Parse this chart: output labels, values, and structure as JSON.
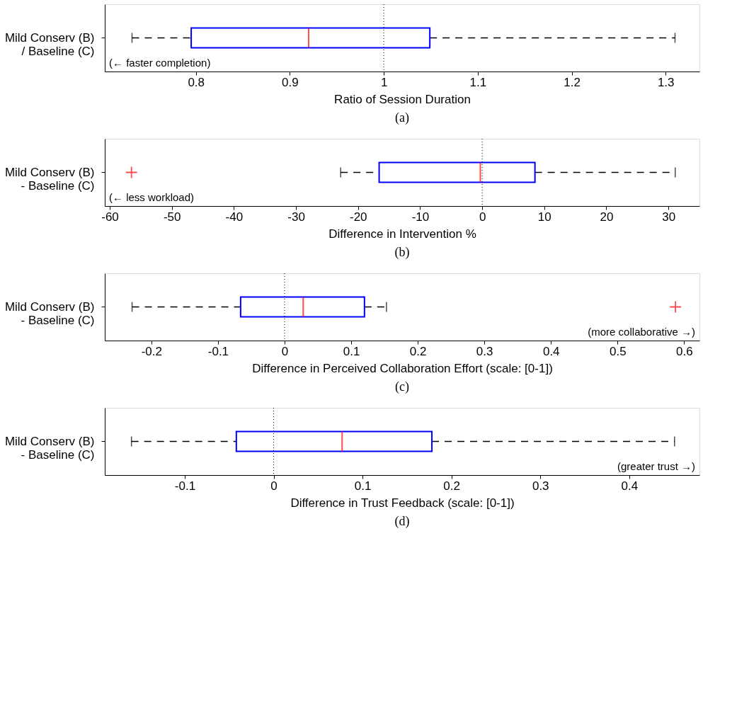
{
  "chart_data": [
    {
      "type": "box",
      "title": "(a)",
      "orientation": "horizontal",
      "categories": [
        "Mild Conserv (B)\n/ Baseline (C)"
      ],
      "xlabel": "Ratio of Session Duration",
      "xlim": [
        0.703,
        1.336
      ],
      "xticks": [
        0.8,
        0.9,
        1,
        1.1,
        1.2,
        1.3
      ],
      "grid": false,
      "boxes": [
        {
          "low": 0.732,
          "q1": 0.795,
          "median": 0.92,
          "q3": 1.049,
          "high": 1.31
        }
      ],
      "ref_lines": [
        {
          "axis": "x",
          "value": 1,
          "line_style": "dotted"
        }
      ],
      "annotations": [
        "(← faster completion)"
      ]
    },
    {
      "type": "box",
      "title": "(b)",
      "orientation": "horizontal",
      "categories": [
        "Mild Conserv (B)\n- Baseline (C)"
      ],
      "xlabel": "Difference in Intervention %",
      "xlim": [
        -60.8,
        35
      ],
      "xticks": [
        -60,
        -50,
        -40,
        -30,
        -20,
        -10,
        0,
        10,
        20,
        30
      ],
      "grid": false,
      "boxes": [
        {
          "low": -22.8,
          "q1": -16.6,
          "median": -0.3,
          "q3": 8.5,
          "high": 31.1,
          "outliers": [
            -56.5
          ]
        }
      ],
      "ref_lines": [
        {
          "axis": "x",
          "value": 0,
          "line_style": "dotted"
        }
      ],
      "annotations": [
        "(← less workload)"
      ]
    },
    {
      "type": "box",
      "title": "(c)",
      "orientation": "horizontal",
      "categories": [
        "Mild Conserv (B)\n- Baseline (C)"
      ],
      "xlabel": "Difference in Perceived Collaboration Effort     (scale: [0-1])",
      "xlim": [
        -0.27,
        0.623
      ],
      "xticks": [
        -0.2,
        -0.1,
        0,
        0.1,
        0.2,
        0.3,
        0.4,
        0.5,
        0.6
      ],
      "grid": false,
      "boxes": [
        {
          "low": -0.229,
          "q1": -0.066,
          "median": 0.028,
          "q3": 0.12,
          "high": 0.153,
          "outliers": [
            0.587
          ]
        }
      ],
      "ref_lines": [
        {
          "axis": "x",
          "value": 0,
          "line_style": "dotted"
        }
      ],
      "annotations": [
        "(more collaborative →)"
      ]
    },
    {
      "type": "box",
      "title": "(d)",
      "orientation": "horizontal",
      "categories": [
        "Mild Conserv (B)\n- Baseline (C)"
      ],
      "xlabel": "Difference in Trust Feedback     (scale: [0-1])",
      "xlim": [
        -0.19,
        0.479
      ],
      "xticks": [
        -0.1,
        0,
        0.1,
        0.2,
        0.3,
        0.4
      ],
      "grid": false,
      "boxes": [
        {
          "low": -0.16,
          "q1": -0.042,
          "median": 0.077,
          "q3": 0.178,
          "high": 0.451
        }
      ],
      "ref_lines": [
        {
          "axis": "x",
          "value": 0,
          "line_style": "dotted"
        }
      ],
      "annotations": [
        "(greater trust →)"
      ]
    }
  ]
}
